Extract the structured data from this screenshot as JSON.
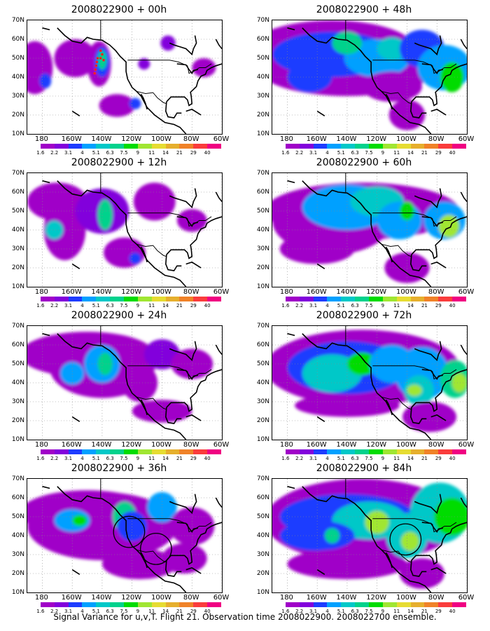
{
  "panels": [
    {
      "title": "2008022900 + 00h"
    },
    {
      "title": "2008022900 + 48h"
    },
    {
      "title": "2008022900 + 12h"
    },
    {
      "title": "2008022900 + 60h"
    },
    {
      "title": "2008022900 + 24h"
    },
    {
      "title": "2008022900 + 72h"
    },
    {
      "title": "2008022900 + 36h"
    },
    {
      "title": "2008022900 + 84h"
    }
  ],
  "y_ticks": [
    "10N",
    "20N",
    "30N",
    "40N",
    "50N",
    "60N",
    "70N"
  ],
  "x_ticks": [
    "180",
    "160W",
    "140W",
    "120W",
    "100W",
    "80W",
    "60W"
  ],
  "colorbar": {
    "labels": [
      "1.6",
      "2.2",
      "3.1",
      "4",
      "5.1",
      "6.3",
      "7.5",
      "9",
      "11",
      "14",
      "21",
      "29",
      "40"
    ],
    "colors": [
      "#ffffff",
      "#a000c8",
      "#8200dc",
      "#1e3cff",
      "#00a0ff",
      "#00c8c8",
      "#00d28c",
      "#00dc00",
      "#a0e632",
      "#e6dc32",
      "#e6af2d",
      "#f08228",
      "#fa3c3c",
      "#f00082"
    ]
  },
  "footer": "Signal Variance for u,v,T. Flight 21. Observation time 2008022900. 2008022700 ensemble.",
  "chart_data": {
    "type": "heatmap",
    "fields": "signal variance for u,v,T",
    "forecast_hours": [
      0,
      12,
      24,
      36,
      48,
      60,
      72,
      84
    ],
    "lon_range": [
      -190,
      -60
    ],
    "lat_range": [
      10,
      70
    ],
    "contour_levels": [
      1.6,
      2.2,
      3.1,
      4,
      5.1,
      6.3,
      7.5,
      9,
      11,
      14,
      21,
      29,
      40
    ],
    "grid": true
  }
}
